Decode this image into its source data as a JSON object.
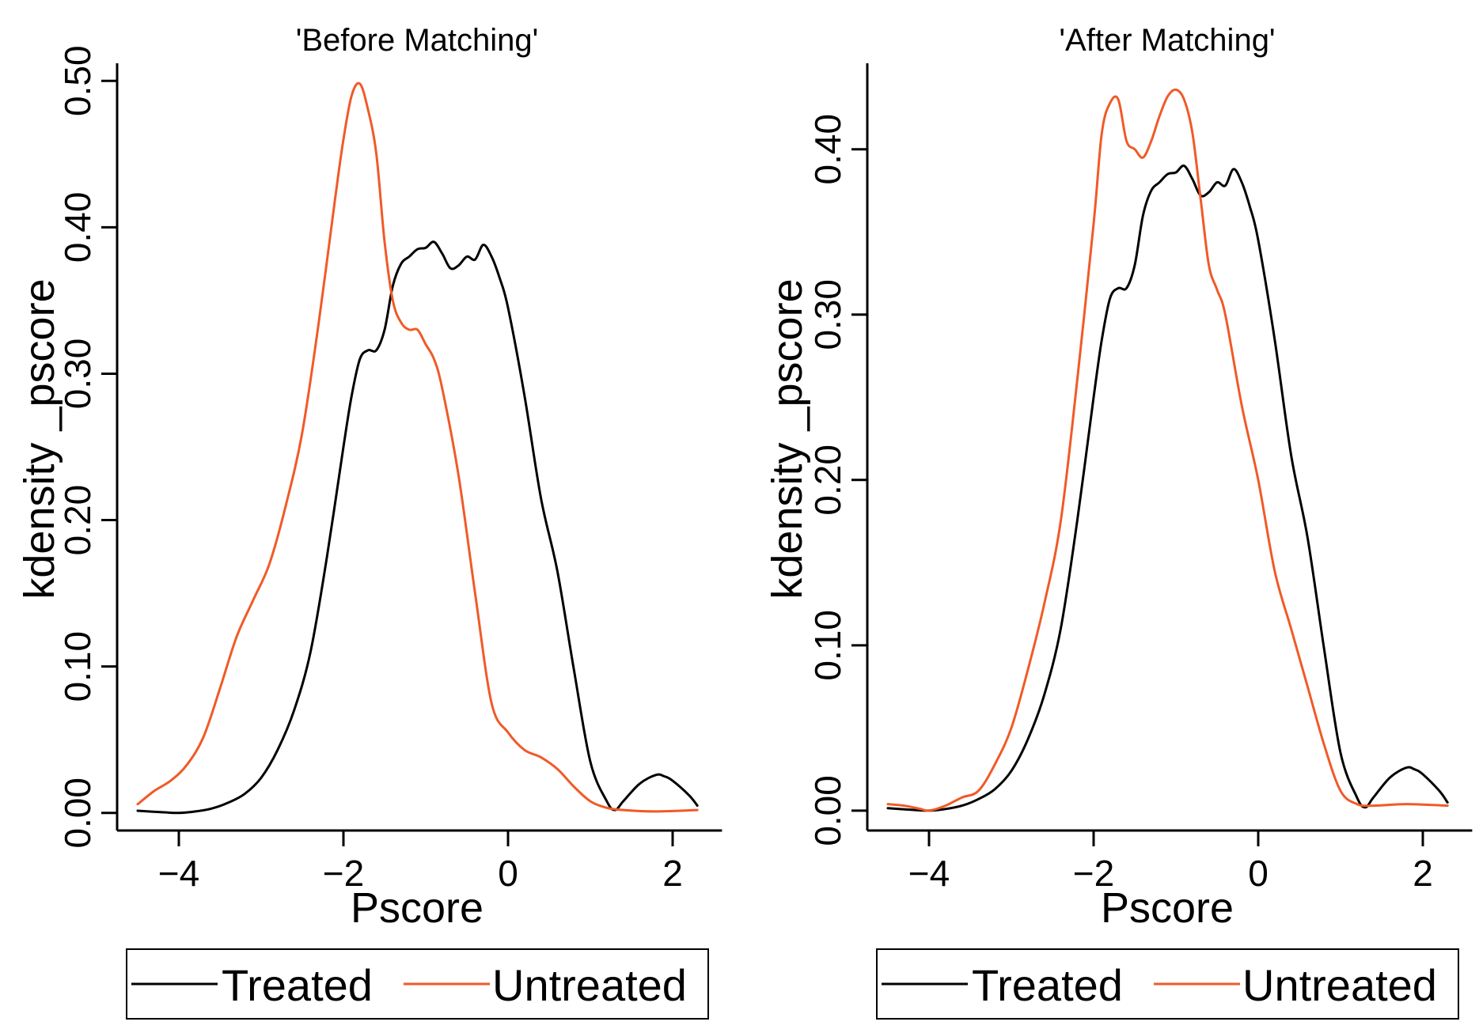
{
  "figure": {
    "panels": [
      {
        "id": "before",
        "title": "'Before Matching'",
        "xlabel": "Pscore",
        "ylabel": "kdensity _pscore",
        "legend": [
          "Treated",
          "Untreated"
        ]
      },
      {
        "id": "after",
        "title": "'After Matching'",
        "xlabel": "Pscore",
        "ylabel": "kdensity _pscore",
        "legend": [
          "Treated",
          "Untreated"
        ]
      }
    ]
  },
  "chart_data": [
    {
      "type": "line",
      "title": "'Before Matching'",
      "xlabel": "Pscore",
      "ylabel": "kdensity _pscore",
      "xlim": [
        -4.6,
        2.6
      ],
      "ylim": [
        -0.012,
        0.512
      ],
      "xticks": [
        -4,
        -2,
        0,
        2
      ],
      "xtick_labels": [
        "−4",
        "−2",
        "0",
        "2"
      ],
      "yticks": [
        0,
        0.1,
        0.2,
        0.3,
        0.4,
        0.5
      ],
      "ytick_labels": [
        "0.00",
        "0.10",
        "0.20",
        "0.30",
        "0.40",
        "0.50"
      ],
      "grid": false,
      "legend_position": "bottom",
      "series": [
        {
          "name": "Treated",
          "color": "#000000",
          "x": [
            -4.5,
            -4.2,
            -4.0,
            -3.8,
            -3.6,
            -3.4,
            -3.2,
            -3.0,
            -2.8,
            -2.6,
            -2.4,
            -2.2,
            -2.0,
            -1.9,
            -1.8,
            -1.7,
            -1.6,
            -1.5,
            -1.4,
            -1.3,
            -1.2,
            -1.1,
            -1.0,
            -0.9,
            -0.8,
            -0.7,
            -0.6,
            -0.5,
            -0.4,
            -0.3,
            -0.2,
            -0.1,
            0.0,
            0.2,
            0.4,
            0.6,
            0.8,
            1.0,
            1.2,
            1.3,
            1.4,
            1.6,
            1.8,
            1.9,
            2.0,
            2.2,
            2.3
          ],
          "y": [
            0.0015,
            0.0005,
            0.0,
            0.001,
            0.003,
            0.007,
            0.013,
            0.024,
            0.043,
            0.07,
            0.11,
            0.175,
            0.25,
            0.285,
            0.31,
            0.316,
            0.316,
            0.33,
            0.36,
            0.375,
            0.38,
            0.385,
            0.386,
            0.39,
            0.382,
            0.372,
            0.374,
            0.38,
            0.378,
            0.388,
            0.38,
            0.365,
            0.345,
            0.285,
            0.215,
            0.165,
            0.098,
            0.035,
            0.008,
            0.002,
            0.008,
            0.02,
            0.026,
            0.025,
            0.022,
            0.012,
            0.005
          ]
        },
        {
          "name": "Untreated",
          "color": "#f05a28",
          "x": [
            -4.5,
            -4.3,
            -4.1,
            -3.9,
            -3.7,
            -3.5,
            -3.3,
            -3.1,
            -2.9,
            -2.7,
            -2.5,
            -2.3,
            -2.1,
            -2.0,
            -1.9,
            -1.8,
            -1.7,
            -1.6,
            -1.5,
            -1.4,
            -1.3,
            -1.2,
            -1.1,
            -1.0,
            -0.9,
            -0.8,
            -0.6,
            -0.4,
            -0.2,
            0.0,
            0.2,
            0.4,
            0.6,
            0.8,
            1.0,
            1.2,
            1.4,
            1.8,
            2.3
          ],
          "y": [
            0.006,
            0.015,
            0.022,
            0.033,
            0.052,
            0.085,
            0.12,
            0.145,
            0.17,
            0.21,
            0.26,
            0.335,
            0.42,
            0.46,
            0.49,
            0.498,
            0.48,
            0.45,
            0.39,
            0.35,
            0.335,
            0.33,
            0.33,
            0.32,
            0.31,
            0.29,
            0.23,
            0.15,
            0.075,
            0.055,
            0.043,
            0.038,
            0.03,
            0.018,
            0.008,
            0.0035,
            0.002,
            0.001,
            0.002
          ]
        }
      ]
    },
    {
      "type": "line",
      "title": "'After Matching'",
      "xlabel": "Pscore",
      "ylabel": "kdensity _pscore",
      "xlim": [
        -4.6,
        2.6
      ],
      "ylim": [
        -0.012,
        0.452
      ],
      "xticks": [
        -4,
        -2,
        0,
        2
      ],
      "xtick_labels": [
        "−4",
        "−2",
        "0",
        "2"
      ],
      "yticks": [
        0,
        0.1,
        0.2,
        0.3,
        0.4
      ],
      "ytick_labels": [
        "0.00",
        "0.10",
        "0.20",
        "0.30",
        "0.40"
      ],
      "grid": false,
      "legend_position": "bottom",
      "series": [
        {
          "name": "Treated",
          "color": "#000000",
          "x": [
            -4.5,
            -4.2,
            -4.0,
            -3.8,
            -3.6,
            -3.4,
            -3.2,
            -3.0,
            -2.8,
            -2.6,
            -2.4,
            -2.2,
            -2.0,
            -1.9,
            -1.8,
            -1.7,
            -1.6,
            -1.5,
            -1.4,
            -1.3,
            -1.2,
            -1.1,
            -1.0,
            -0.9,
            -0.8,
            -0.7,
            -0.6,
            -0.5,
            -0.4,
            -0.3,
            -0.2,
            -0.1,
            0.0,
            0.2,
            0.4,
            0.6,
            0.8,
            1.0,
            1.2,
            1.3,
            1.4,
            1.6,
            1.8,
            1.9,
            2.0,
            2.2,
            2.3
          ],
          "y": [
            0.0015,
            0.0005,
            0.0,
            0.001,
            0.003,
            0.007,
            0.013,
            0.024,
            0.043,
            0.07,
            0.11,
            0.175,
            0.25,
            0.285,
            0.31,
            0.316,
            0.316,
            0.33,
            0.36,
            0.375,
            0.38,
            0.385,
            0.386,
            0.39,
            0.382,
            0.372,
            0.374,
            0.38,
            0.378,
            0.388,
            0.38,
            0.365,
            0.345,
            0.285,
            0.215,
            0.165,
            0.098,
            0.035,
            0.008,
            0.002,
            0.008,
            0.02,
            0.026,
            0.025,
            0.022,
            0.012,
            0.005
          ]
        },
        {
          "name": "Untreated",
          "color": "#f05a28",
          "x": [
            -4.5,
            -4.3,
            -4.1,
            -4.0,
            -3.8,
            -3.6,
            -3.4,
            -3.2,
            -3.0,
            -2.8,
            -2.6,
            -2.4,
            -2.2,
            -2.0,
            -1.9,
            -1.8,
            -1.7,
            -1.6,
            -1.5,
            -1.4,
            -1.3,
            -1.2,
            -1.1,
            -1.0,
            -0.9,
            -0.8,
            -0.7,
            -0.6,
            -0.5,
            -0.4,
            -0.2,
            0.0,
            0.2,
            0.4,
            0.6,
            0.8,
            1.0,
            1.2,
            1.4,
            1.8,
            2.3
          ],
          "y": [
            0.004,
            0.003,
            0.001,
            0.0,
            0.003,
            0.008,
            0.012,
            0.028,
            0.05,
            0.085,
            0.125,
            0.175,
            0.26,
            0.355,
            0.41,
            0.428,
            0.43,
            0.405,
            0.4,
            0.395,
            0.405,
            0.42,
            0.432,
            0.436,
            0.43,
            0.41,
            0.37,
            0.33,
            0.315,
            0.3,
            0.245,
            0.2,
            0.145,
            0.11,
            0.075,
            0.04,
            0.012,
            0.004,
            0.003,
            0.004,
            0.003
          ]
        }
      ]
    }
  ]
}
